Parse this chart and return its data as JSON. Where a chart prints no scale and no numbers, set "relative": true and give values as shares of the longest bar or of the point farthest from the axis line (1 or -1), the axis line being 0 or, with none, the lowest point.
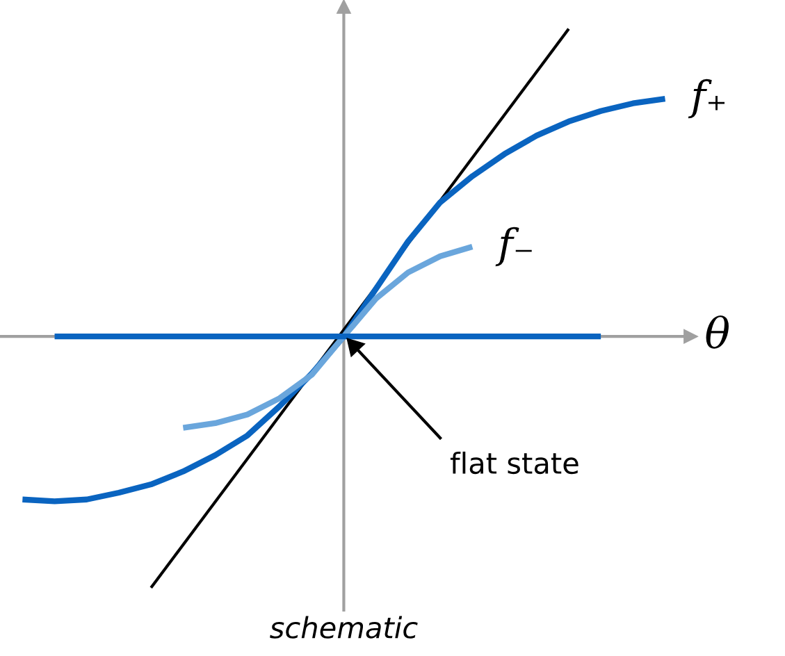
{
  "chart_data": {
    "type": "line",
    "relative": true,
    "xlabel": "θ",
    "marker": "none",
    "line_style": "solid",
    "categories": [
      null,
      null,
      null,
      null,
      null,
      null,
      null,
      null,
      null,
      null,
      null,
      null,
      null,
      null,
      null,
      null,
      null,
      null,
      null,
      null,
      null
    ],
    "series": [
      {
        "name": "f₊",
        "color": "#0a64c0",
        "values": [
          -0.53,
          -0.536,
          -0.53,
          -0.508,
          -0.481,
          -0.439,
          -0.386,
          -0.322,
          -0.227,
          -0.121,
          0,
          0.155,
          0.309,
          0.436,
          0.521,
          0.593,
          0.653,
          0.699,
          0.733,
          0.758,
          0.773
        ]
      },
      {
        "name": "f₋",
        "color": "#6aa6dc",
        "values": [
          null,
          null,
          null,
          null,
          null,
          -0.297,
          -0.282,
          -0.254,
          -0.201,
          -0.125,
          0,
          0.123,
          0.208,
          0.261,
          0.292,
          null,
          null,
          null,
          null,
          null,
          null
        ]
      },
      {
        "color": "#0a64c0",
        "values": [
          null,
          0,
          0,
          0,
          0,
          0,
          0,
          0,
          0,
          0,
          0,
          0,
          0,
          0,
          0,
          0,
          0,
          0,
          0,
          null,
          null
        ]
      },
      {
        "color": "#000000",
        "values": [
          null,
          null,
          null,
          null,
          -0.817,
          null,
          null,
          null,
          null,
          null,
          null,
          null,
          null,
          null,
          null,
          null,
          null,
          1,
          null,
          null,
          null
        ]
      }
    ],
    "annotations": [
      "flat state",
      "schematic"
    ]
  }
}
